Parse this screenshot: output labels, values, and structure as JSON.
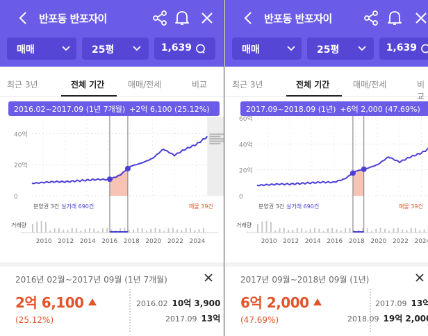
{
  "panels": [
    {
      "title": "반포동 반포자이",
      "filters": {
        "deal": "매매",
        "size": "25평",
        "count": "1,639"
      },
      "tabs": [
        "최근 3년",
        "전체 기간",
        "매매/전세",
        "비교"
      ],
      "tooltip": {
        "range": "2016.02~2017.09 (1년 7개월)",
        "change": "+2억 6,100 (25.12%)"
      },
      "y_ticks": [
        "40억",
        "20억",
        "0"
      ],
      "x_ticks": [
        "2010",
        "2012",
        "2014",
        "2016",
        "2018",
        "2020",
        "2022",
        "2024"
      ],
      "legend": {
        "supply": "분양권 3건",
        "trades": "실거래 690건",
        "listings": "매물 39건",
        "volume": "거래량"
      },
      "detail": {
        "range": "2016년 02월~2017년 09월 (1년 7개월)",
        "diff": "2억 6,100",
        "pct": "(25.12%)",
        "from": {
          "date": "2016.02",
          "price": "10억 3,900"
        },
        "to": {
          "date": "2017.09",
          "price": "13억"
        }
      }
    },
    {
      "title": "반포동 반포자이",
      "filters": {
        "deal": "매매",
        "size": "25평",
        "count": "1,639"
      },
      "tabs": [
        "최근 3년",
        "전체 기간",
        "매매/전세",
        "비교"
      ],
      "tooltip": {
        "range": "2017.09~2018.09 (1년)",
        "change": "+6억 2,000 (47.69%)"
      },
      "y_ticks": [
        "60억",
        "40억",
        "20억",
        "0"
      ],
      "x_ticks": [
        "2010",
        "2012",
        "2014",
        "2016",
        "2018",
        "2020",
        "2022",
        "2024"
      ],
      "legend": {
        "supply": "분양권 3건",
        "trades": "실거래 690건",
        "listings": "매물 39건",
        "volume": "거래량"
      },
      "detail": {
        "range": "2017년 09월~2018년 09월 (1년)",
        "diff": "6억 2,000",
        "pct": "(47.69%)",
        "from": {
          "date": "2017.09",
          "price": "13억"
        },
        "to": {
          "date": "2018.09",
          "price": "19억 2,000"
        }
      }
    }
  ],
  "colors": {
    "header": "#6b5ce7",
    "filter": "#5646d6",
    "line": "#4b3fd6",
    "up": "#e2552a",
    "range_fill": "#f6b9a8"
  },
  "chart_data": {
    "type": "line",
    "x": [
      2009,
      2010,
      2011,
      2012,
      2013,
      2014,
      2015,
      2016,
      2017,
      2018,
      2019,
      2020,
      2021,
      2022,
      2023,
      2024,
      2025
    ],
    "series": [
      {
        "values": [
          8,
          8.5,
          9,
          9,
          9.5,
          10,
          10.5,
          10.4,
          13,
          19,
          21,
          24,
          30,
          26,
          30,
          33,
          38
        ]
      }
    ],
    "ylim": [
      0,
      60
    ]
  }
}
